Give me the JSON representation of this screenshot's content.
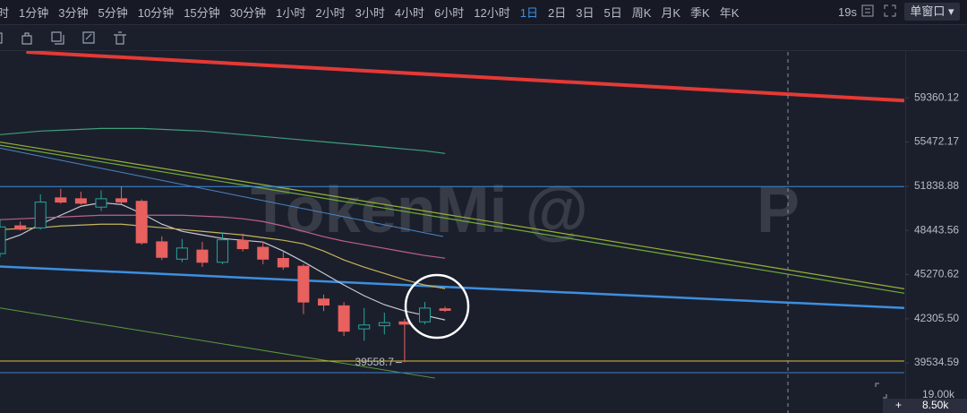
{
  "toolbar": {
    "intervals": [
      "时",
      "1分钟",
      "3分钟",
      "5分钟",
      "10分钟",
      "15分钟",
      "30分钟",
      "1小时",
      "2小时",
      "3小时",
      "4小时",
      "6小时",
      "12小时",
      "1日",
      "2日",
      "3日",
      "5日",
      "周K",
      "月K",
      "季K",
      "年K"
    ],
    "selected": 13,
    "timer": "19s",
    "window_button": "单窗口"
  },
  "chart_data": {
    "type": "candlestick",
    "watermark": [
      "TokenMi @",
      "P"
    ],
    "open": [
      46750,
      48780,
      48630,
      50920,
      50850,
      50200,
      50850,
      50650,
      47600,
      46350,
      47000,
      46130,
      47700,
      47200,
      46400,
      45850,
      43600,
      43150,
      41650,
      41850,
      42100,
      42100,
      42950
    ],
    "high": [
      49244,
      49100,
      51200,
      51630,
      51400,
      51500,
      51800,
      50800,
      48000,
      47800,
      47600,
      48300,
      48200,
      47600,
      46900,
      46000,
      43900,
      43400,
      43000,
      42700,
      42300,
      43400,
      43100
    ],
    "low": [
      46500,
      48440,
      48500,
      50470,
      50400,
      49900,
      50450,
      47400,
      46300,
      46150,
      45800,
      46000,
      46900,
      46000,
      45600,
      42600,
      42800,
      41200,
      40900,
      41300,
      39558.7,
      41950,
      42750
    ],
    "close": [
      48700,
      48530,
      50590,
      50590,
      50500,
      50850,
      50600,
      47530,
      46480,
      47150,
      46130,
      47750,
      47100,
      46350,
      45800,
      43400,
      43200,
      41500,
      41900,
      42050,
      41950,
      43000,
      42850
    ],
    "up_color": "#26a69a",
    "down_color": "#e8615f",
    "xlim": [
      0,
      44.7
    ],
    "ylim": [
      37680,
      63690
    ],
    "log_scale": true,
    "yticks": [
      59360.12,
      55472.17,
      51838.88,
      48443.56,
      45270.62,
      {
        "value": 42305.5,
        "label": "42305.50"
      },
      39534.59
    ],
    "moving_averages": [
      {
        "color": "#c9c9d1",
        "values": [
          47583,
          48106,
          48904,
          49581,
          50267,
          50545,
          50406,
          49718,
          48904,
          48371,
          48106,
          47845,
          47714,
          47583,
          46932,
          46165,
          45350,
          44548,
          43820,
          43223,
          42812,
          42520,
          42226
        ]
      },
      {
        "color": "#c8b45a",
        "values": [
          48505,
          48572,
          48639,
          48771,
          48837,
          48904,
          48904,
          48771,
          48639,
          48505,
          48371,
          48239,
          48106,
          47908,
          47714,
          47453,
          46932,
          46294,
          45789,
          45350,
          44915,
          44548,
          44306
        ]
      },
      {
        "color": "#c0608a",
        "values": [
          49244,
          49312,
          49380,
          49447,
          49515,
          49581,
          49581,
          49581,
          49581,
          49581,
          49515,
          49447,
          49312,
          49106,
          48771,
          48371,
          47975,
          47648,
          47387,
          47126,
          46866,
          46611,
          46419
        ]
      },
      {
        "color": "#3f9e78",
        "values": [
          56103,
          56257,
          56411,
          56487,
          56564,
          56641,
          56641,
          56641,
          56564,
          56487,
          56411,
          56257,
          56103,
          55950,
          55797,
          55644,
          55492,
          55340,
          55188,
          55036,
          54884,
          54733,
          54507
        ]
      }
    ],
    "trend_lines": [
      {
        "color": "#e53935",
        "width": 4,
        "x": [
          1.3,
          44.7
        ],
        "values": [
          63690,
          59110
        ]
      },
      {
        "color": "#3d8fe0",
        "width": 2.5,
        "x": [
          0,
          44.7
        ],
        "values": [
          45830,
          43010
        ]
      },
      {
        "color": "#9ab034",
        "width": 1.2,
        "x": [
          0,
          44.7
        ],
        "values": [
          55472,
          44290
        ]
      },
      {
        "color": "#6fae3a",
        "width": 1.2,
        "x": [
          0,
          44.7
        ],
        "values": [
          55200,
          43990
        ]
      },
      {
        "color": "#4a86c8",
        "width": 1,
        "x": [
          0,
          21.9
        ],
        "values": [
          54957,
          47990
        ]
      },
      {
        "color": "#5c9a3a",
        "width": 1,
        "x": [
          0,
          21.5
        ],
        "values": [
          43010,
          38620
        ]
      },
      {
        "color": "#3d8fe0",
        "width": 1,
        "x": [
          0,
          44.7
        ],
        "values": [
          51806,
          51806
        ]
      },
      {
        "color": "#e0c030",
        "width": 1,
        "x": [
          0,
          44.7
        ],
        "values": [
          39643,
          39643
        ]
      },
      {
        "color": "#3d7fc8",
        "width": 1,
        "x": [
          0,
          44.7
        ],
        "values": [
          38942,
          38942
        ]
      }
    ],
    "volume_axis_label": "19.00k",
    "crosshair_value_label": "8.50k"
  }
}
